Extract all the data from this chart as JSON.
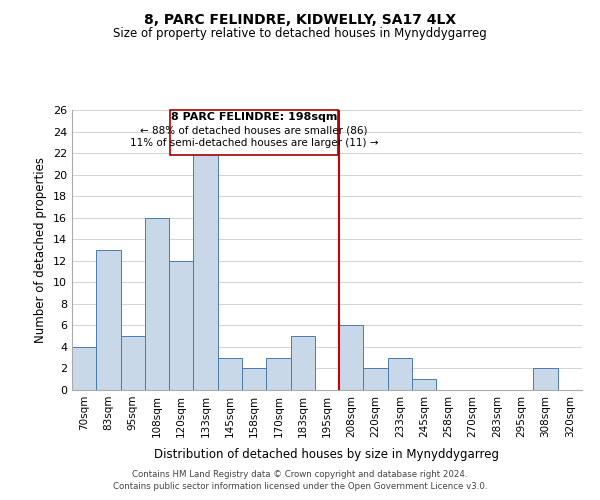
{
  "title": "8, PARC FELINDRE, KIDWELLY, SA17 4LX",
  "subtitle": "Size of property relative to detached houses in Mynyddygarreg",
  "xlabel": "Distribution of detached houses by size in Mynyddygarreg",
  "ylabel": "Number of detached properties",
  "bar_labels": [
    "70sqm",
    "83sqm",
    "95sqm",
    "108sqm",
    "120sqm",
    "133sqm",
    "145sqm",
    "158sqm",
    "170sqm",
    "183sqm",
    "195sqm",
    "208sqm",
    "220sqm",
    "233sqm",
    "245sqm",
    "258sqm",
    "270sqm",
    "283sqm",
    "295sqm",
    "308sqm",
    "320sqm"
  ],
  "bar_values": [
    4,
    13,
    5,
    16,
    12,
    22,
    3,
    2,
    3,
    5,
    0,
    6,
    2,
    3,
    1,
    0,
    0,
    0,
    0,
    2,
    0
  ],
  "bar_color": "#c8d8e8",
  "bar_edge_color": "#4a7aad",
  "ylim": [
    0,
    26
  ],
  "yticks": [
    0,
    2,
    4,
    6,
    8,
    10,
    12,
    14,
    16,
    18,
    20,
    22,
    24,
    26
  ],
  "marker_label_line1": "8 PARC FELINDRE: 198sqm",
  "marker_label_line2": "← 88% of detached houses are smaller (86)",
  "marker_label_line3": "11% of semi-detached houses are larger (11) →",
  "marker_color": "#cc0000",
  "annotation_box_color": "#ffffff",
  "annotation_box_edge": "#aa0000",
  "footer_line1": "Contains HM Land Registry data © Crown copyright and database right 2024.",
  "footer_line2": "Contains public sector information licensed under the Open Government Licence v3.0.",
  "bg_color": "#ffffff",
  "grid_color": "#cccccc"
}
